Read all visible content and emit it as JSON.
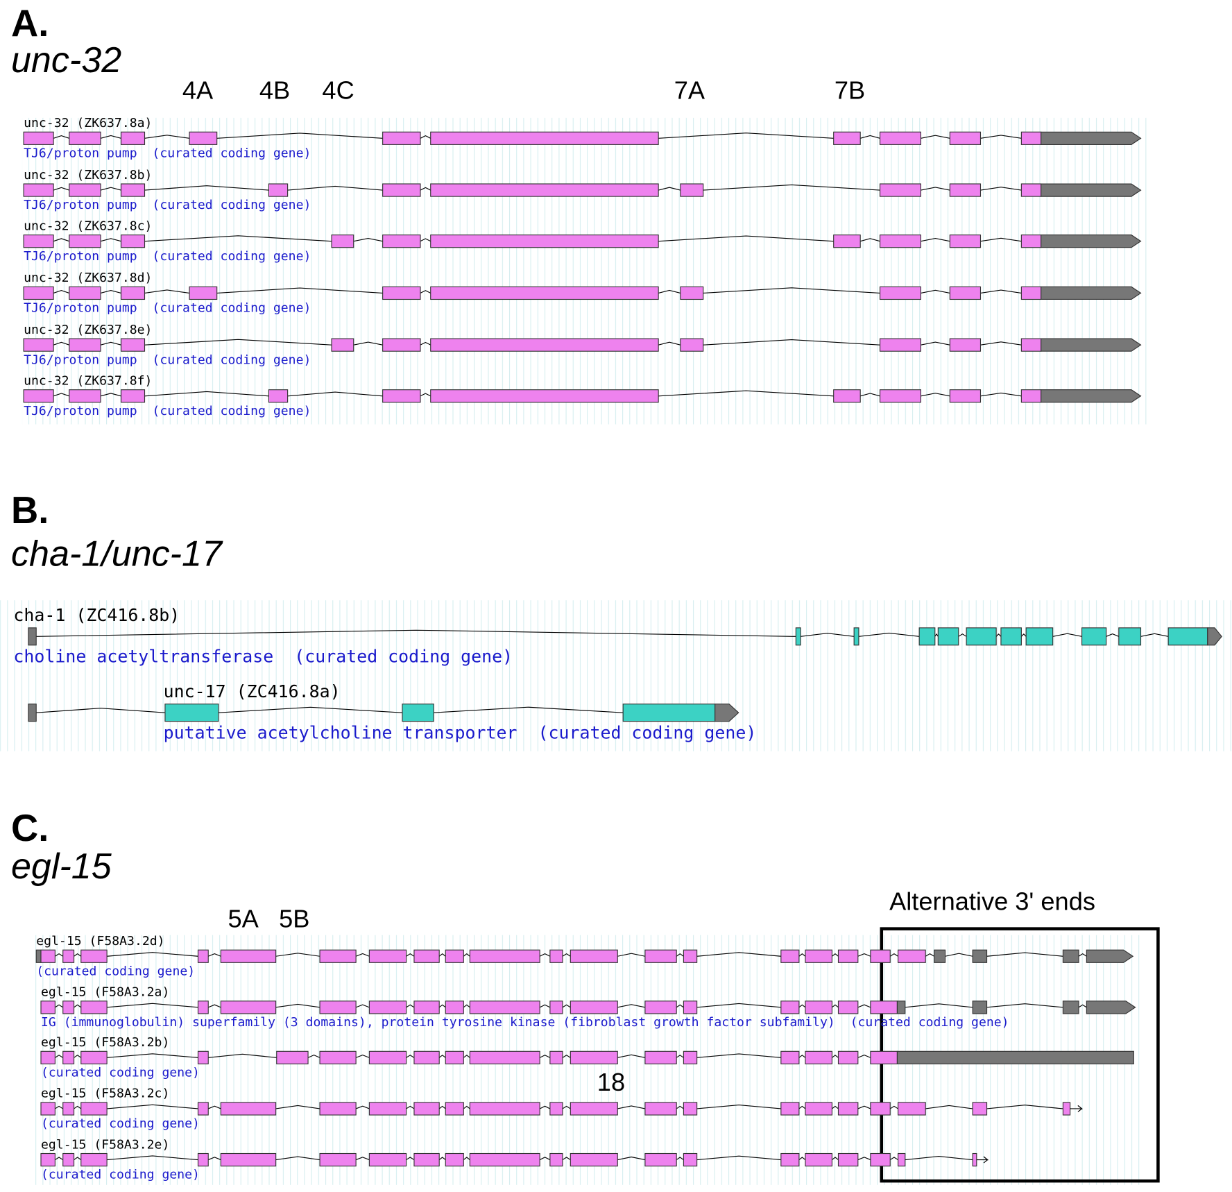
{
  "panels": [
    {
      "letter": "A.",
      "gene": "unc-32",
      "exon_labels": [
        "4A",
        "4B",
        "4C",
        "7A",
        "7B"
      ],
      "transcripts": [
        {
          "name": "unc-32 (ZK637.8a)",
          "description": "TJ6/proton pump  (curated coding gene)"
        },
        {
          "name": "unc-32 (ZK637.8b)",
          "description": "TJ6/proton pump  (curated coding gene)"
        },
        {
          "name": "unc-32 (ZK637.8c)",
          "description": "TJ6/proton pump  (curated coding gene)"
        },
        {
          "name": "unc-32 (ZK637.8d)",
          "description": "TJ6/proton pump  (curated coding gene)"
        },
        {
          "name": "unc-32 (ZK637.8e)",
          "description": "TJ6/proton pump  (curated coding gene)"
        },
        {
          "name": "unc-32 (ZK637.8f)",
          "description": "TJ6/proton pump  (curated coding gene)"
        }
      ]
    },
    {
      "letter": "B.",
      "gene": "cha-1/unc-17",
      "transcripts": [
        {
          "name": "cha-1 (ZC416.8b)",
          "description": "choline acetyltransferase  (curated coding gene)"
        },
        {
          "name": "unc-17 (ZC416.8a)",
          "description": "putative acetylcholine transporter  (curated coding gene)"
        }
      ]
    },
    {
      "letter": "C.",
      "gene": "egl-15",
      "exon_labels": [
        "5A",
        "5B",
        "18"
      ],
      "box_label": "Alternative 3' ends",
      "transcripts": [
        {
          "name": "egl-15 (F58A3.2d)",
          "description": "(curated coding gene)"
        },
        {
          "name": "egl-15 (F58A3.2a)",
          "description": "IG (immunoglobulin) superfamily (3 domains), protein tyrosine kinase (fibroblast growth factor subfamily)  (curated coding gene)"
        },
        {
          "name": "egl-15 (F58A3.2b)",
          "description": "(curated coding gene)"
        },
        {
          "name": "egl-15 (F58A3.2c)",
          "description": "(curated coding gene)"
        },
        {
          "name": "egl-15 (F58A3.2e)",
          "description": "(curated coding gene)"
        }
      ]
    }
  ]
}
